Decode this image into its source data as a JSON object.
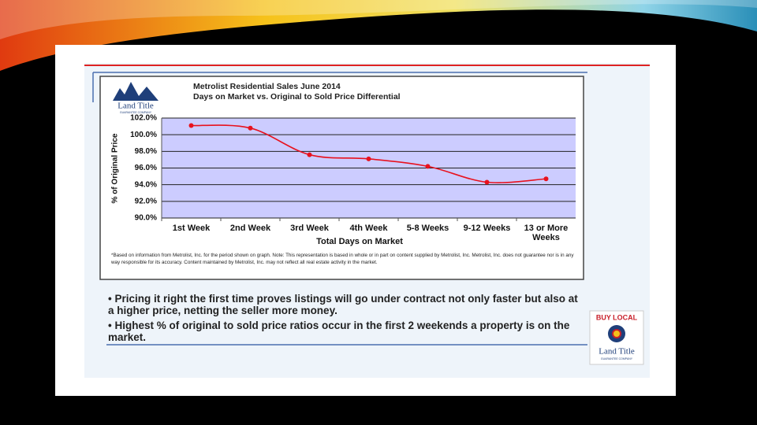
{
  "logo": {
    "name": "Land Title",
    "tagline": "GUARANTEE COMPANY"
  },
  "chart_data": {
    "type": "line",
    "title": "Metrolist Residential Sales June 2014",
    "subtitle": "Days on Market vs. Original to Sold Price Differential",
    "ylabel": "% of Original Price",
    "xlabel": "Total Days on Market",
    "categories": [
      "1st Week",
      "2nd Week",
      "3rd Week",
      "4th Week",
      "5-8 Weeks",
      "9-12 Weeks",
      "13 or More Weeks"
    ],
    "values": [
      101.1,
      100.8,
      97.6,
      97.1,
      96.2,
      94.3,
      94.7
    ],
    "color": "#e8121e",
    "ylim": [
      90,
      102
    ],
    "yticks": [
      {
        "value": 90,
        "label": "90.0%"
      },
      {
        "value": 92,
        "label": "92.0%"
      },
      {
        "value": 94,
        "label": "94.0%"
      },
      {
        "value": 96,
        "label": "96.0%"
      },
      {
        "value": 98,
        "label": "98.0%"
      },
      {
        "value": 100,
        "label": "100.0%"
      },
      {
        "value": 102,
        "label": "102.0%"
      }
    ],
    "grid": true
  },
  "footnote": "*Based on information from Metrolist, Inc. for the period shown on graph. Note: This representation is based in whole or in part on content supplied by Metrolist, Inc. Metrolist, Inc. does not guarantee nor is in any way responsible for its accuracy. Content maintained by Metrolist, Inc. may not reflect all real estate activity in the market.",
  "bullets": [
    "Pricing it right the first time proves listings will go under contract not only faster but also at a higher price, netting the seller more money.",
    "Highest % of original to sold price ratios occur in the first 2 weekends a property is on the market."
  ],
  "badge": {
    "top": "BUY LOCAL",
    "name": "Land Title",
    "tagline": "GUARANTEE COMPANY"
  }
}
